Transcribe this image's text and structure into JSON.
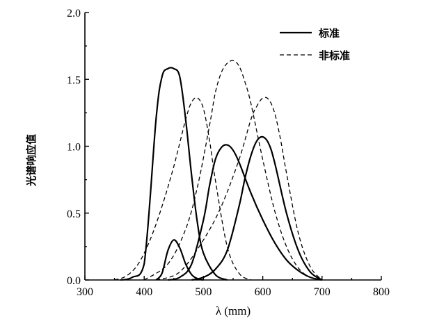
{
  "chart_data": {
    "type": "line",
    "xlabel": "λ (mm)",
    "ylabel": "光谱响应值",
    "xlim": [
      300,
      800
    ],
    "ylim": [
      0,
      2.0
    ],
    "x_ticks": [
      "300",
      "400",
      "500",
      "600",
      "700",
      "800"
    ],
    "y_ticks": [
      "0.0",
      "0.5",
      "1.0",
      "1.5",
      "2.0"
    ],
    "legend": {
      "placement": "top-right",
      "entries": [
        {
          "label": "标准",
          "style": "solid"
        },
        {
          "label": "非标准",
          "style": "dashed"
        }
      ]
    },
    "series": [
      {
        "name": "标准",
        "style": "solid",
        "x": [
          360,
          380,
          400,
          420,
          430,
          440,
          450,
          460,
          470,
          480,
          490,
          500,
          520,
          540
        ],
        "y": [
          0.0,
          0.02,
          0.12,
          1.2,
          1.52,
          1.58,
          1.58,
          1.52,
          1.2,
          0.78,
          0.42,
          0.2,
          0.04,
          0.0
        ]
      },
      {
        "name": "标准",
        "style": "solid",
        "x": [
          420,
          430,
          440,
          450,
          460,
          470,
          480,
          490,
          500
        ],
        "y": [
          0.0,
          0.05,
          0.22,
          0.3,
          0.24,
          0.12,
          0.04,
          0.01,
          0.0
        ]
      },
      {
        "name": "标准",
        "style": "solid",
        "x": [
          440,
          460,
          480,
          500,
          510,
          520,
          530,
          540,
          550,
          560,
          580,
          600,
          620,
          640,
          660,
          680,
          700
        ],
        "y": [
          0.0,
          0.02,
          0.12,
          0.45,
          0.7,
          0.9,
          0.99,
          1.01,
          0.97,
          0.88,
          0.65,
          0.45,
          0.28,
          0.15,
          0.07,
          0.02,
          0.0
        ]
      },
      {
        "name": "标准",
        "style": "solid",
        "x": [
          480,
          500,
          520,
          540,
          560,
          570,
          580,
          590,
          600,
          610,
          620,
          640,
          660,
          680,
          700
        ],
        "y": [
          0.0,
          0.02,
          0.08,
          0.22,
          0.55,
          0.76,
          0.93,
          1.04,
          1.07,
          1.02,
          0.88,
          0.5,
          0.22,
          0.06,
          0.0
        ]
      },
      {
        "name": "非标准",
        "style": "dashed",
        "x": [
          350,
          370,
          390,
          410,
          430,
          450,
          470,
          480,
          490,
          500,
          510,
          520,
          540,
          560,
          580
        ],
        "y": [
          0.0,
          0.03,
          0.12,
          0.3,
          0.55,
          0.85,
          1.2,
          1.33,
          1.36,
          1.28,
          1.05,
          0.75,
          0.25,
          0.05,
          0.0
        ]
      },
      {
        "name": "非标准",
        "style": "dashed",
        "x": [
          400,
          440,
          470,
          490,
          510,
          520,
          530,
          540,
          550,
          560,
          570,
          580,
          600,
          620,
          640,
          660,
          680,
          700
        ],
        "y": [
          0.0,
          0.12,
          0.38,
          0.7,
          1.15,
          1.4,
          1.55,
          1.62,
          1.64,
          1.6,
          1.48,
          1.32,
          0.9,
          0.52,
          0.25,
          0.09,
          0.02,
          0.0
        ]
      },
      {
        "name": "非标准",
        "style": "dashed",
        "x": [
          420,
          460,
          500,
          530,
          560,
          580,
          590,
          600,
          610,
          620,
          630,
          640,
          660,
          680,
          700
        ],
        "y": [
          0.0,
          0.06,
          0.3,
          0.55,
          0.9,
          1.2,
          1.3,
          1.36,
          1.35,
          1.25,
          1.05,
          0.8,
          0.35,
          0.1,
          0.0
        ]
      }
    ]
  }
}
